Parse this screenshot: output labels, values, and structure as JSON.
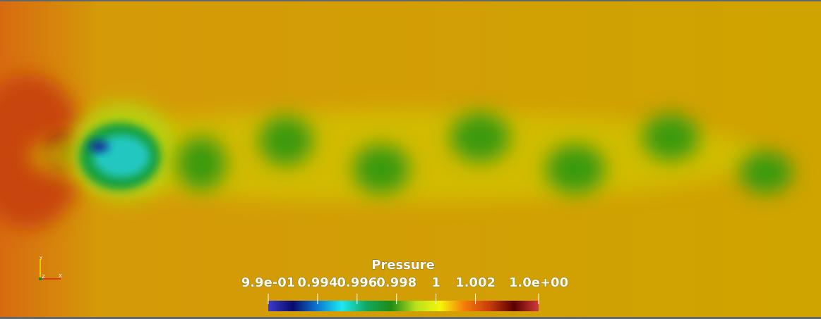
{
  "colorbar": {
    "title": "Pressure",
    "range": [
      0.9915,
      1.0052
    ],
    "ticks": [
      {
        "value": 0.9915,
        "label": "9.9e-01"
      },
      0.994,
      0.996,
      0.998,
      1,
      1.002,
      {
        "value": 1.0052,
        "label": "1.0e+00"
      }
    ],
    "colormap": [
      "#3b3bc8",
      "#0a0a6e",
      "#0a7ad0",
      "#1ee8f0",
      "#12a860",
      "#1e8c14",
      "#b8e01e",
      "#f5f50a",
      "#f57a0a",
      "#c83c0a",
      "#5a0000",
      "#d03c3c"
    ]
  },
  "orientation_axes": {
    "x": "X",
    "y": "Y",
    "z": "Z"
  }
}
